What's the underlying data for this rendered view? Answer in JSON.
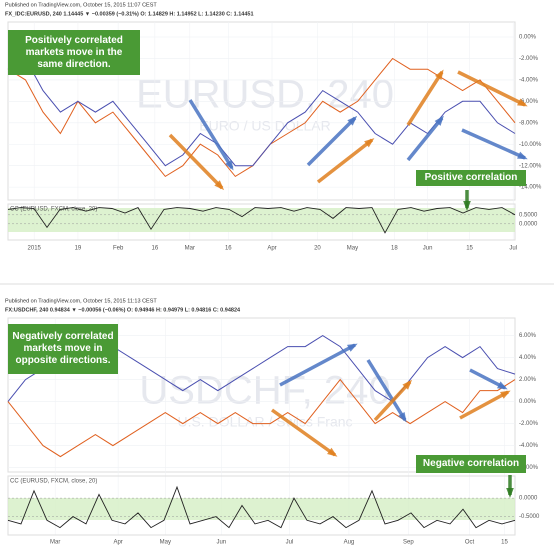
{
  "chart_data": [
    {
      "type": "line",
      "title": "Published on TradingView.com, October 15, 2015 11:07 CEST",
      "subtitle": "FX_IDC:EURUSD, 240  1.14445 ▼ −0.00359 (−0.31%) O: 1.14829 H: 1.14952 L: 1.14230 C: 1.14451",
      "watermark": [
        "EURUSD, 240",
        "EURO / US DOLLAR"
      ],
      "annotations": [
        "Positively correlated markets move in the same direction.",
        "Positive correlation"
      ],
      "xlim": [
        0,
        29
      ],
      "xticks": [
        {
          "value": 1.5,
          "label": "2015"
        },
        {
          "value": 4,
          "label": "19"
        },
        {
          "value": 6.3,
          "label": "Feb"
        },
        {
          "value": 8.4,
          "label": "16"
        },
        {
          "value": 10.4,
          "label": "Mar"
        },
        {
          "value": 12.6,
          "label": "16"
        },
        {
          "value": 15.1,
          "label": "Apr"
        },
        {
          "value": 17.7,
          "label": "20"
        },
        {
          "value": 19.7,
          "label": "May"
        },
        {
          "value": 22.1,
          "label": "18"
        },
        {
          "value": 24,
          "label": "Jun"
        },
        {
          "value": 26.4,
          "label": "15"
        },
        {
          "value": 28.9,
          "label": "Jul"
        }
      ],
      "ylim": [
        -15.2,
        1.4
      ],
      "yticks": [
        {
          "value": 0,
          "label": "0.00%"
        },
        {
          "value": -2,
          "label": "-2.00%"
        },
        {
          "value": -4,
          "label": "-4.00%"
        },
        {
          "value": -6,
          "label": "-6.00%"
        },
        {
          "value": -8,
          "label": "-8.00%"
        },
        {
          "value": -10,
          "label": "-10.00%"
        },
        {
          "value": -12,
          "label": "-12.00%"
        },
        {
          "value": -14,
          "label": "-14.00%"
        }
      ],
      "series": [
        {
          "color": "#e0601f",
          "values": [
            -3,
            -4,
            -7,
            -9,
            -6,
            -8,
            -7,
            -9,
            -11,
            -13,
            -12,
            -10,
            -11,
            -13,
            -12,
            -10,
            -9,
            -8,
            -6,
            -7,
            -6,
            -4,
            -2,
            -3,
            -3,
            -4,
            -5,
            -4,
            -6,
            -8
          ]
        },
        {
          "color": "#4a4fb0",
          "values": [
            -3,
            -2,
            -5,
            -7,
            -6,
            -7,
            -6,
            -8,
            -10,
            -12,
            -11,
            -9,
            -10,
            -12,
            -12,
            -10,
            -8,
            -7,
            -5,
            -6,
            -7,
            -9,
            -10,
            -8,
            -9,
            -7,
            -6,
            -6,
            -8,
            -9
          ]
        }
      ],
      "indicator": {
        "label": "CC (EURUSD, FXCM, close, 20)",
        "color": "#222",
        "ylim": [
          -0.9,
          1.1
        ],
        "yticks": [
          {
            "value": 0.5,
            "label": "0.5000"
          },
          {
            "value": 0,
            "label": "0.0000"
          }
        ],
        "values": [
          0.8,
          0.9,
          0.85,
          -0.2,
          0.8,
          0.9,
          0.7,
          0.9,
          0.85,
          0.6,
          0.9,
          -0.3,
          0.8,
          0.9,
          0.85,
          0.7,
          0.9,
          0.8,
          0.4,
          0.9,
          0.85,
          0.9,
          0.7,
          0.9,
          0.8,
          0.3,
          0.9,
          0.85,
          0.9,
          -0.5,
          0.8,
          0.9,
          0.7,
          0.85,
          0.9,
          0.6,
          0.9,
          0.8,
          0.9,
          0.5
        ]
      }
    },
    {
      "type": "line",
      "title": "Published on TradingView.com, October 15, 2015 11:13 CEST",
      "subtitle": "FX:USDCHF, 240  0.94834 ▼ −0.00056 (−0.06%) O: 0.94946 H: 0.94979 L: 0.94816 C: 0.94824",
      "watermark": [
        "USDCHF, 240",
        "U.S. DOLLAR / Swiss Franc"
      ],
      "annotations": [
        "Negatively correlated markets move in opposite directions.",
        "Negative correlation"
      ],
      "xlim": [
        0,
        29
      ],
      "xticks": [
        {
          "value": 2.7,
          "label": "Mar"
        },
        {
          "value": 6.3,
          "label": "Apr"
        },
        {
          "value": 9,
          "label": "May"
        },
        {
          "value": 12.2,
          "label": "Jun"
        },
        {
          "value": 16.1,
          "label": "Jul"
        },
        {
          "value": 19.5,
          "label": "Aug"
        },
        {
          "value": 22.9,
          "label": "Sep"
        },
        {
          "value": 26.4,
          "label": "Oct"
        },
        {
          "value": 28.4,
          "label": "15"
        }
      ],
      "ylim": [
        -6.4,
        7.6
      ],
      "yticks": [
        {
          "value": 6,
          "label": "6.00%"
        },
        {
          "value": 4,
          "label": "4.00%"
        },
        {
          "value": 2,
          "label": "2.00%"
        },
        {
          "value": 0,
          "label": "0.00%"
        },
        {
          "value": -2,
          "label": "-2.00%"
        },
        {
          "value": -4,
          "label": "-4.00%"
        },
        {
          "value": -6,
          "label": "-6.00%"
        }
      ],
      "series": [
        {
          "color": "#4a4fb0",
          "values": [
            0,
            2,
            3,
            4,
            5,
            6,
            5,
            4,
            3,
            2,
            1,
            2,
            1,
            2,
            3,
            4,
            5,
            5,
            6,
            5,
            3,
            1,
            0,
            2,
            4,
            5,
            4,
            5,
            3,
            2.5
          ]
        },
        {
          "color": "#e0601f",
          "values": [
            0,
            -2,
            -4,
            -5,
            -4,
            -3,
            -4,
            -3,
            -2,
            -1,
            -2,
            -1,
            -2,
            -1,
            -2,
            -2,
            -1,
            -2,
            0,
            2,
            0,
            -2,
            -1,
            -2,
            -1,
            0,
            -1,
            1,
            1,
            2
          ]
        }
      ],
      "indicator": {
        "label": "CC (EURUSD, FXCM, close, 20)",
        "color": "#222",
        "ylim": [
          -1,
          0.6
        ],
        "yticks": [
          {
            "value": 0,
            "label": "0.0000"
          },
          {
            "value": -0.5,
            "label": "-0.5000"
          }
        ],
        "values": [
          -0.6,
          -0.7,
          0.2,
          -0.6,
          -0.8,
          -0.5,
          -0.7,
          0.1,
          -0.6,
          -0.7,
          -0.4,
          -0.8,
          -0.6,
          0.3,
          -0.7,
          -0.6,
          -0.5,
          -0.8,
          -0.2,
          -0.7,
          -0.6,
          -0.8,
          0.0,
          -0.6,
          -0.7,
          -0.5,
          -0.8,
          -0.6,
          0.2,
          -0.7,
          -0.6,
          -0.4,
          -0.8,
          -0.6,
          -0.7,
          -0.3,
          -0.8,
          -0.6,
          -0.7,
          -0.6
        ]
      }
    }
  ]
}
